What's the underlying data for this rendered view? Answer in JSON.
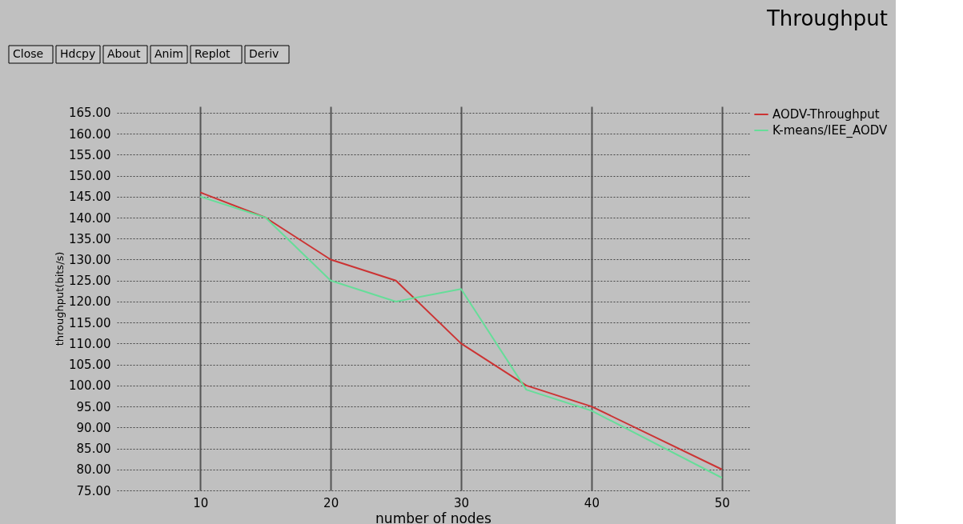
{
  "chart_data": {
    "type": "line",
    "title": "Throughput",
    "xlabel": "number of nodes",
    "ylabel": "throughput(bits/s)",
    "annotations": [
      "Close",
      "Hdcpy",
      "About",
      "Anim",
      "Replot",
      "Deriv"
    ],
    "xlim": [
      3.6,
      52.1
    ],
    "xticks": [
      10,
      20,
      30,
      40,
      50
    ],
    "ylim": [
      75,
      166.5
    ],
    "yticks": [
      {
        "value": 75,
        "label": "75.00"
      },
      {
        "value": 80,
        "label": "80.00"
      },
      {
        "value": 85,
        "label": "85.00"
      },
      {
        "value": 90,
        "label": "90.00"
      },
      {
        "value": 95,
        "label": "95.00"
      },
      {
        "value": 100,
        "label": "100.00"
      },
      {
        "value": 105,
        "label": "105.00"
      },
      {
        "value": 110,
        "label": "110.00"
      },
      {
        "value": 115,
        "label": "115.00"
      },
      {
        "value": 120,
        "label": "120.00"
      },
      {
        "value": 125,
        "label": "125.00"
      },
      {
        "value": 130,
        "label": "130.00"
      },
      {
        "value": 135,
        "label": "135.00"
      },
      {
        "value": 140,
        "label": "140.00"
      },
      {
        "value": 145,
        "label": "145.00"
      },
      {
        "value": 150,
        "label": "150.00"
      },
      {
        "value": 155,
        "label": "155.00"
      },
      {
        "value": 160,
        "label": "160.00"
      },
      {
        "value": 165,
        "label": "165.00"
      }
    ],
    "grid": true,
    "legend": "top right",
    "marker": "none",
    "line_style": "solid",
    "series": [
      {
        "name": "AODV-Throughput",
        "color": "#cc3333",
        "x": [
          10,
          15,
          20,
          25,
          30,
          35,
          40,
          50
        ],
        "values": [
          146,
          140,
          130,
          125,
          110,
          100,
          95,
          80
        ]
      },
      {
        "name": "K-means/IEE_AODV",
        "color": "#66dd99",
        "x": [
          10,
          15,
          20,
          25,
          30,
          35,
          40,
          50
        ],
        "values": [
          145,
          140,
          125,
          120,
          123,
          99,
          94,
          78
        ]
      }
    ]
  }
}
